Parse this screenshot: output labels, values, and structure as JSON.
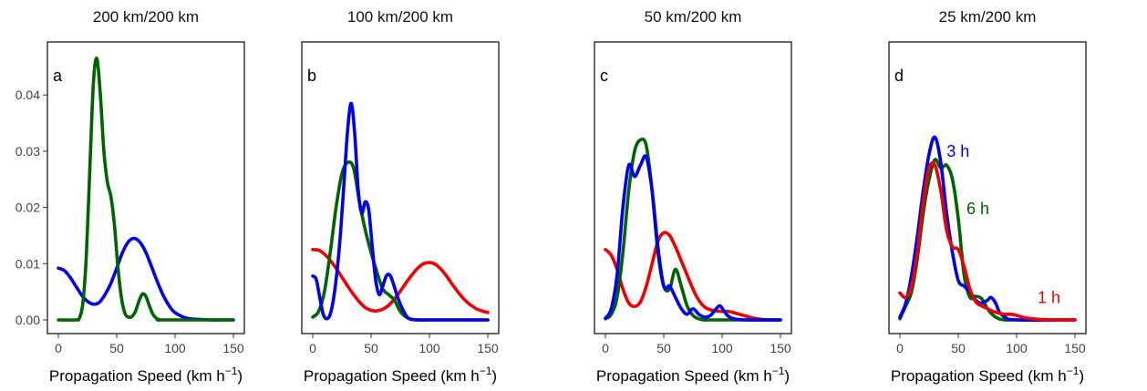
{
  "chart_data": [
    {
      "type": "line",
      "title": "200 km/200 km",
      "panel_label": "a",
      "xlabel": "Propagation Speed (km h",
      "xlabel_sup": "−1",
      "xlabel_close": ")",
      "xlim": [
        0,
        150
      ],
      "ylim": [
        0,
        0.047
      ],
      "xticks": [
        "0",
        "50",
        "100",
        "150"
      ],
      "yticks": [
        "0.00",
        "0.01",
        "0.02",
        "0.03",
        "0.04"
      ],
      "series": [
        {
          "color": "#0000ee",
          "x": [
            0,
            5,
            10,
            15,
            20,
            25,
            30,
            35,
            40,
            45,
            50,
            55,
            60,
            65,
            70,
            75,
            80,
            85,
            90,
            95,
            100,
            110,
            120,
            130,
            140,
            150
          ],
          "y": [
            0.0092,
            0.0088,
            0.0076,
            0.006,
            0.0044,
            0.0033,
            0.0028,
            0.0031,
            0.0045,
            0.0065,
            0.0092,
            0.012,
            0.0139,
            0.0145,
            0.0138,
            0.012,
            0.0094,
            0.0067,
            0.0043,
            0.0025,
            0.0013,
            0.0003,
            0.0001,
            0.0,
            0.0,
            0.0
          ]
        },
        {
          "color": "#006400",
          "x": [
            0,
            15,
            18,
            21,
            24,
            27,
            30,
            33,
            36,
            39,
            42,
            45,
            48,
            51,
            54,
            57,
            60,
            63,
            66,
            69,
            72,
            75,
            78,
            81,
            84,
            87,
            90,
            150
          ],
          "y": [
            0.0,
            0.0,
            0.0003,
            0.003,
            0.0115,
            0.027,
            0.042,
            0.0465,
            0.04,
            0.03,
            0.0245,
            0.022,
            0.017,
            0.0095,
            0.004,
            0.0012,
            0.0005,
            0.0006,
            0.0015,
            0.0033,
            0.0046,
            0.0042,
            0.0025,
            0.001,
            0.0003,
            0.0,
            0.0,
            0.0
          ]
        }
      ]
    },
    {
      "type": "line",
      "title": "100 km/200 km",
      "panel_label": "b",
      "xlabel": "Propagation Speed (km h",
      "xlabel_sup": "−1",
      "xlabel_close": ")",
      "xlim": [
        0,
        150
      ],
      "ylim": [
        0,
        0.047
      ],
      "xticks": [
        "0",
        "50",
        "100",
        "150"
      ],
      "yticks": [],
      "series": [
        {
          "color": "#ee0000",
          "x": [
            0,
            5,
            10,
            15,
            20,
            25,
            30,
            35,
            40,
            45,
            50,
            55,
            60,
            65,
            70,
            75,
            80,
            85,
            90,
            95,
            100,
            105,
            110,
            115,
            120,
            130,
            140,
            150
          ],
          "y": [
            0.0125,
            0.0124,
            0.0117,
            0.0106,
            0.0092,
            0.0076,
            0.006,
            0.0045,
            0.0032,
            0.0022,
            0.0017,
            0.0016,
            0.0019,
            0.0026,
            0.0037,
            0.0051,
            0.0066,
            0.008,
            0.0092,
            0.01,
            0.0102,
            0.0099,
            0.009,
            0.0077,
            0.0062,
            0.0036,
            0.002,
            0.0013
          ]
        },
        {
          "color": "#006400",
          "x": [
            0,
            5,
            10,
            15,
            20,
            25,
            30,
            35,
            40,
            45,
            50,
            55,
            60,
            65,
            70,
            75,
            80,
            85,
            90,
            100,
            150
          ],
          "y": [
            0.0005,
            0.0015,
            0.005,
            0.012,
            0.02,
            0.026,
            0.028,
            0.027,
            0.021,
            0.016,
            0.012,
            0.0085,
            0.0055,
            0.0045,
            0.0035,
            0.0015,
            0.0005,
            0.0001,
            0.0,
            0.0,
            0.0
          ]
        },
        {
          "color": "#0000ee",
          "x": [
            0,
            3,
            6,
            9,
            12,
            15,
            18,
            21,
            24,
            27,
            30,
            33,
            36,
            39,
            42,
            45,
            48,
            51,
            54,
            57,
            60,
            63,
            66,
            69,
            72,
            75,
            78,
            81,
            84,
            90,
            100,
            150
          ],
          "y": [
            0.0078,
            0.0072,
            0.004,
            0.001,
            0.0002,
            0.001,
            0.004,
            0.009,
            0.016,
            0.025,
            0.034,
            0.0385,
            0.033,
            0.023,
            0.019,
            0.021,
            0.0195,
            0.013,
            0.007,
            0.0045,
            0.006,
            0.0078,
            0.008,
            0.0065,
            0.0045,
            0.0028,
            0.0015,
            0.0005,
            0.0001,
            0.0,
            0.0,
            0.0
          ]
        }
      ]
    },
    {
      "type": "line",
      "title": "50 km/200 km",
      "panel_label": "c",
      "xlabel": "Propagation Speed (km h",
      "xlabel_sup": "−1",
      "xlabel_close": ")",
      "xlim": [
        0,
        150
      ],
      "ylim": [
        0,
        0.047
      ],
      "xticks": [
        "0",
        "50",
        "100",
        "150"
      ],
      "yticks": [],
      "series": [
        {
          "color": "#ee0000",
          "x": [
            0,
            5,
            10,
            15,
            20,
            25,
            30,
            35,
            40,
            45,
            50,
            55,
            60,
            65,
            70,
            75,
            80,
            85,
            90,
            95,
            100,
            105,
            110,
            115,
            120,
            130,
            140,
            150
          ],
          "y": [
            0.0125,
            0.0115,
            0.009,
            0.0055,
            0.003,
            0.0024,
            0.0032,
            0.006,
            0.01,
            0.014,
            0.0155,
            0.015,
            0.013,
            0.0105,
            0.008,
            0.0055,
            0.0035,
            0.0023,
            0.0018,
            0.0016,
            0.0015,
            0.0015,
            0.0013,
            0.001,
            0.0007,
            0.0002,
            0.0,
            0.0
          ]
        },
        {
          "color": "#006400",
          "x": [
            0,
            5,
            10,
            15,
            20,
            25,
            30,
            35,
            40,
            45,
            50,
            55,
            60,
            65,
            70,
            75,
            80,
            85,
            90,
            150
          ],
          "y": [
            0.0002,
            0.001,
            0.004,
            0.012,
            0.023,
            0.03,
            0.032,
            0.031,
            0.023,
            0.012,
            0.006,
            0.0055,
            0.009,
            0.006,
            0.0025,
            0.0008,
            0.0002,
            0.0,
            0.0,
            0.0
          ]
        },
        {
          "color": "#0000ee",
          "x": [
            0,
            5,
            10,
            15,
            20,
            25,
            30,
            35,
            40,
            45,
            50,
            55,
            60,
            65,
            70,
            75,
            80,
            85,
            90,
            95,
            98,
            101,
            105,
            110,
            120,
            150
          ],
          "y": [
            0.0003,
            0.002,
            0.008,
            0.02,
            0.0275,
            0.0255,
            0.0275,
            0.029,
            0.023,
            0.013,
            0.006,
            0.006,
            0.004,
            0.002,
            0.001,
            0.002,
            0.001,
            0.0005,
            0.0008,
            0.002,
            0.0025,
            0.0018,
            0.0007,
            0.0002,
            0.0,
            0.0
          ]
        }
      ]
    },
    {
      "type": "line",
      "title": "25 km/200 km",
      "panel_label": "d",
      "xlabel": "Propagation Speed (km h",
      "xlabel_sup": "−1",
      "xlabel_close": ")",
      "xlim": [
        0,
        150
      ],
      "ylim": [
        0,
        0.047
      ],
      "xticks": [
        "0",
        "50",
        "100",
        "150"
      ],
      "yticks": [],
      "annotations": [
        {
          "text": "3 h",
          "x": 40,
          "y": 0.029,
          "color": "#0000ee"
        },
        {
          "text": "6 h",
          "x": 57,
          "y": 0.0188,
          "color": "#006400"
        },
        {
          "text": "1 h",
          "x": 118,
          "y": 0.003,
          "color": "#ee0000"
        }
      ],
      "series": [
        {
          "color": "#006400",
          "x": [
            0,
            5,
            10,
            15,
            20,
            25,
            30,
            35,
            40,
            45,
            50,
            55,
            60,
            65,
            70,
            75,
            80,
            85,
            90,
            95,
            100,
            150
          ],
          "y": [
            0.0002,
            0.0025,
            0.005,
            0.011,
            0.019,
            0.025,
            0.0285,
            0.027,
            0.0275,
            0.025,
            0.018,
            0.008,
            0.004,
            0.0042,
            0.0038,
            0.002,
            0.0008,
            0.0002,
            0.0,
            0.0,
            0.0,
            0.0
          ]
        },
        {
          "color": "#0000ee",
          "x": [
            0,
            5,
            10,
            15,
            20,
            25,
            30,
            35,
            40,
            45,
            50,
            55,
            60,
            65,
            70,
            75,
            78,
            82,
            85,
            90,
            100,
            150
          ],
          "y": [
            0.0005,
            0.003,
            0.008,
            0.015,
            0.023,
            0.0295,
            0.0325,
            0.028,
            0.019,
            0.012,
            0.007,
            0.006,
            0.005,
            0.0035,
            0.003,
            0.0035,
            0.004,
            0.003,
            0.0015,
            0.0005,
            0.0,
            0.0
          ]
        },
        {
          "color": "#ee0000",
          "x": [
            0,
            5,
            10,
            15,
            20,
            25,
            30,
            35,
            40,
            45,
            50,
            55,
            60,
            65,
            70,
            75,
            80,
            85,
            90,
            95,
            100,
            105,
            110,
            120,
            130,
            150
          ],
          "y": [
            0.0048,
            0.004,
            0.006,
            0.012,
            0.021,
            0.027,
            0.0275,
            0.023,
            0.016,
            0.013,
            0.0125,
            0.0095,
            0.0055,
            0.0032,
            0.0025,
            0.002,
            0.0015,
            0.0012,
            0.001,
            0.001,
            0.0008,
            0.0005,
            0.0003,
            0.0001,
            0.0,
            0.0
          ]
        }
      ]
    }
  ]
}
